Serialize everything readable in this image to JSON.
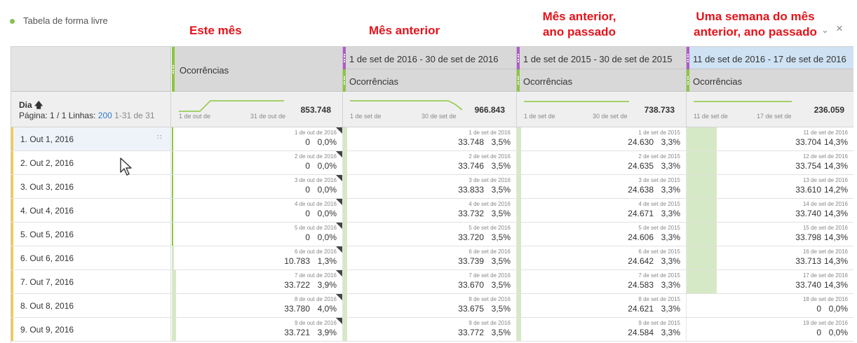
{
  "panel": {
    "title": "Tabela de forma livre"
  },
  "annotations": [
    {
      "line1": "Este mês",
      "line2": ""
    },
    {
      "line1": "Mês anterior",
      "line2": ""
    },
    {
      "line1": "Mês anterior,",
      "line2": "ano passado"
    },
    {
      "line1": "Uma semana do mês",
      "line2": "anterior, ano passado"
    }
  ],
  "colors": {
    "green": "#8cc63f",
    "purple": "#b05ac8",
    "blue_header": "#cfe2f3",
    "bar_fill": "#d6e9c6",
    "annotation_red": "#e6121a",
    "row_marker": "#f2c94c"
  },
  "header": {
    "dimension": {
      "title": "Dia",
      "sort_icon": "arrow-up-icon"
    },
    "pagination": {
      "page_label": "Página: 1 / 1",
      "rows_label": "Linhas:",
      "rows_value": "200",
      "range": "1-31 de 31"
    },
    "columns": [
      {
        "segment": "",
        "metric": "Ocorrências",
        "spark_start": "1 de out de",
        "spark_end": "31 de out de",
        "total": "853.748"
      },
      {
        "segment": "1 de set de 2016 - 30 de set de 2016",
        "metric": "Ocorrências",
        "spark_start": "1 de set de",
        "spark_end": "30 de set de",
        "total": "966.843"
      },
      {
        "segment": "1 de set de 2015 - 30 de set de 2015",
        "metric": "Ocorrências",
        "spark_start": "1 de set de",
        "spark_end": "30 de set de",
        "total": "738.733"
      },
      {
        "segment": "11 de set de 2016 - 17 de set de 2016",
        "metric": "Ocorrências",
        "spark_start": "11 de set de",
        "spark_end": "17 de set de",
        "total": "236.059"
      }
    ]
  },
  "rows": [
    {
      "label": "1.  Out 1, 2016",
      "cells": [
        {
          "date": "1 de out de 2016",
          "value": "0",
          "pct": "0,0%",
          "fill": 0
        },
        {
          "date": "1 de set de 2016",
          "value": "33.748",
          "pct": "3,5%",
          "fill": 0.025
        },
        {
          "date": "1 de set de 2015",
          "value": "24.630",
          "pct": "3,3%",
          "fill": 0.025
        },
        {
          "date": "11 de set de 2016",
          "value": "33.704",
          "pct": "14,3%",
          "fill": 0.18
        }
      ]
    },
    {
      "label": "2.  Out 2, 2016",
      "cells": [
        {
          "date": "2 de out de 2016",
          "value": "0",
          "pct": "0,0%",
          "fill": 0
        },
        {
          "date": "2 de set de 2016",
          "value": "33.746",
          "pct": "3,5%",
          "fill": 0.025
        },
        {
          "date": "2 de set de 2015",
          "value": "24.635",
          "pct": "3,3%",
          "fill": 0.025
        },
        {
          "date": "12 de set de 2016",
          "value": "33.754",
          "pct": "14,3%",
          "fill": 0.18
        }
      ]
    },
    {
      "label": "3.  Out 3, 2016",
      "cells": [
        {
          "date": "3 de out de 2016",
          "value": "0",
          "pct": "0,0%",
          "fill": 0
        },
        {
          "date": "3 de set de 2016",
          "value": "33.833",
          "pct": "3,5%",
          "fill": 0.025
        },
        {
          "date": "3 de set de 2015",
          "value": "24.638",
          "pct": "3,3%",
          "fill": 0.025
        },
        {
          "date": "13 de set de 2016",
          "value": "33.610",
          "pct": "14,2%",
          "fill": 0.18
        }
      ]
    },
    {
      "label": "4.  Out 4, 2016",
      "cells": [
        {
          "date": "4 de out de 2016",
          "value": "0",
          "pct": "0,0%",
          "fill": 0
        },
        {
          "date": "4 de set de 2016",
          "value": "33.732",
          "pct": "3,5%",
          "fill": 0.025
        },
        {
          "date": "4 de set de 2015",
          "value": "24.671",
          "pct": "3,3%",
          "fill": 0.025
        },
        {
          "date": "14 de set de 2016",
          "value": "33.740",
          "pct": "14,3%",
          "fill": 0.18
        }
      ]
    },
    {
      "label": "5.  Out 5, 2016",
      "cells": [
        {
          "date": "5 de out de 2016",
          "value": "0",
          "pct": "0,0%",
          "fill": 0
        },
        {
          "date": "5 de set de 2016",
          "value": "33.720",
          "pct": "3,5%",
          "fill": 0.025
        },
        {
          "date": "5 de set de 2015",
          "value": "24.606",
          "pct": "3,3%",
          "fill": 0.025
        },
        {
          "date": "15 de set de 2016",
          "value": "33.798",
          "pct": "14,3%",
          "fill": 0.18
        }
      ]
    },
    {
      "label": "6.  Out 6, 2016",
      "cells": [
        {
          "date": "6 de out de 2016",
          "value": "10.783",
          "pct": "1,3%",
          "fill": 0.01
        },
        {
          "date": "6 de set de 2016",
          "value": "33.739",
          "pct": "3,5%",
          "fill": 0.025
        },
        {
          "date": "6 de set de 2015",
          "value": "24.642",
          "pct": "3,3%",
          "fill": 0.025
        },
        {
          "date": "16 de set de 2016",
          "value": "33.713",
          "pct": "14,3%",
          "fill": 0.18
        }
      ]
    },
    {
      "label": "7.  Out 7, 2016",
      "cells": [
        {
          "date": "7 de out de 2016",
          "value": "33.722",
          "pct": "3,9%",
          "fill": 0.025
        },
        {
          "date": "7 de set de 2016",
          "value": "33.670",
          "pct": "3,5%",
          "fill": 0.025
        },
        {
          "date": "7 de set de 2015",
          "value": "24.583",
          "pct": "3,3%",
          "fill": 0.025
        },
        {
          "date": "17 de set de 2016",
          "value": "33.740",
          "pct": "14,3%",
          "fill": 0.18
        }
      ]
    },
    {
      "label": "8.  Out 8, 2016",
      "cells": [
        {
          "date": "8 de out de 2016",
          "value": "33.780",
          "pct": "4,0%",
          "fill": 0.025
        },
        {
          "date": "8 de set de 2016",
          "value": "33.675",
          "pct": "3,5%",
          "fill": 0.025
        },
        {
          "date": "8 de set de 2015",
          "value": "24.621",
          "pct": "3,3%",
          "fill": 0.025
        },
        {
          "date": "18 de set de 2016",
          "value": "0",
          "pct": "0,0%",
          "fill": 0
        }
      ]
    },
    {
      "label": "9.  Out 9, 2016",
      "cells": [
        {
          "date": "9 de out de 2016",
          "value": "33.721",
          "pct": "3,9%",
          "fill": 0.025
        },
        {
          "date": "9 de set de 2016",
          "value": "33.772",
          "pct": "3,5%",
          "fill": 0.025
        },
        {
          "date": "9 de set de 2015",
          "value": "24.584",
          "pct": "3,3%",
          "fill": 0.025
        },
        {
          "date": "19 de set de 2016",
          "value": "0",
          "pct": "0,0%",
          "fill": 0
        }
      ]
    }
  ]
}
